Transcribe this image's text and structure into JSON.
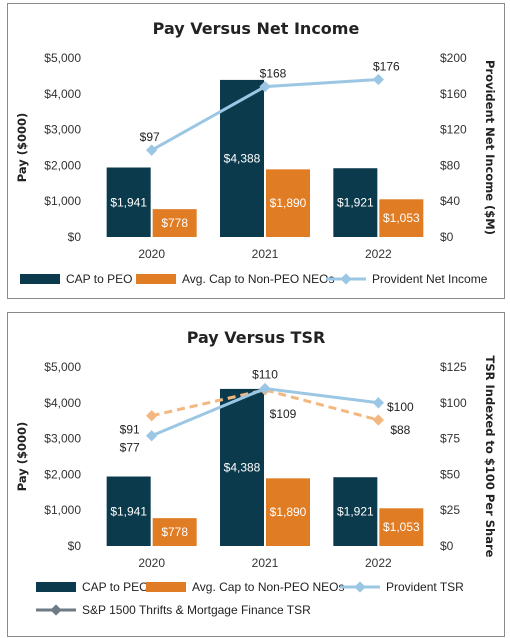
{
  "chart_data": [
    {
      "type": "bar",
      "title": "Pay Versus Net Income",
      "categories": [
        "2020",
        "2021",
        "2022"
      ],
      "ylabel": "Pay ($000)",
      "y2label": "Provident Net Income ($M)",
      "ylim": [
        0,
        5000
      ],
      "y2lim": [
        0,
        200
      ],
      "yticks": [
        "$0",
        "$1,000",
        "$2,000",
        "$3,000",
        "$4,000",
        "$5,000"
      ],
      "y2ticks": [
        "$0",
        "$40",
        "$80",
        "$120",
        "$160",
        "$200"
      ],
      "series": [
        {
          "name": "CAP to PEO",
          "kind": "bar",
          "axis": "left",
          "color": "#0b3a4c",
          "values": [
            1941,
            4388,
            1921
          ],
          "labels": [
            "$1,941",
            "$4,388",
            "$1,921"
          ]
        },
        {
          "name": "Avg. Cap to Non-PEO NEOs",
          "kind": "bar",
          "axis": "left",
          "color": "#e07c24",
          "values": [
            778,
            1890,
            1053
          ],
          "labels": [
            "$778",
            "$1,890",
            "$1,053"
          ]
        },
        {
          "name": "Provident Net Income",
          "kind": "line",
          "axis": "right",
          "color": "#9cc7e4",
          "values": [
            97,
            168,
            176
          ],
          "labels": [
            "$97",
            "$168",
            "$176"
          ]
        }
      ],
      "legend": "bottom",
      "grid": false
    },
    {
      "type": "bar",
      "title": "Pay Versus TSR",
      "categories": [
        "2020",
        "2021",
        "2022"
      ],
      "ylabel": "Pay ($000)",
      "y2label": "TSR Indexed to $100 Per Share",
      "ylim": [
        0,
        5000
      ],
      "y2lim": [
        0,
        125
      ],
      "yticks": [
        "$0",
        "$1,000",
        "$2,000",
        "$3,000",
        "$4,000",
        "$5,000"
      ],
      "y2ticks": [
        "$0",
        "$25",
        "$50",
        "$75",
        "$100",
        "$125"
      ],
      "series": [
        {
          "name": "CAP to PEO",
          "kind": "bar",
          "axis": "left",
          "color": "#0b3a4c",
          "values": [
            1941,
            4388,
            1921
          ],
          "labels": [
            "$1,941",
            "$4,388",
            "$1,921"
          ]
        },
        {
          "name": "Avg. Cap to Non-PEO NEOs",
          "kind": "bar",
          "axis": "left",
          "color": "#e07c24",
          "values": [
            778,
            1890,
            1053
          ],
          "labels": [
            "$778",
            "$1,890",
            "$1,053"
          ]
        },
        {
          "name": "Provident TSR",
          "kind": "line",
          "axis": "right",
          "color": "#9cc7e4",
          "values": [
            77,
            110,
            100
          ],
          "labels": [
            "$77",
            "$110",
            "$100"
          ]
        },
        {
          "name": "S&P 1500 Thrifts & Mortgage Finance TSR",
          "kind": "dashed-line",
          "axis": "right",
          "color": "#f2b880",
          "legend_color": "#6e7a86",
          "values": [
            91,
            109,
            88
          ],
          "labels": [
            "$91",
            "$109",
            "$88"
          ]
        }
      ],
      "legend": "bottom",
      "grid": false
    }
  ]
}
